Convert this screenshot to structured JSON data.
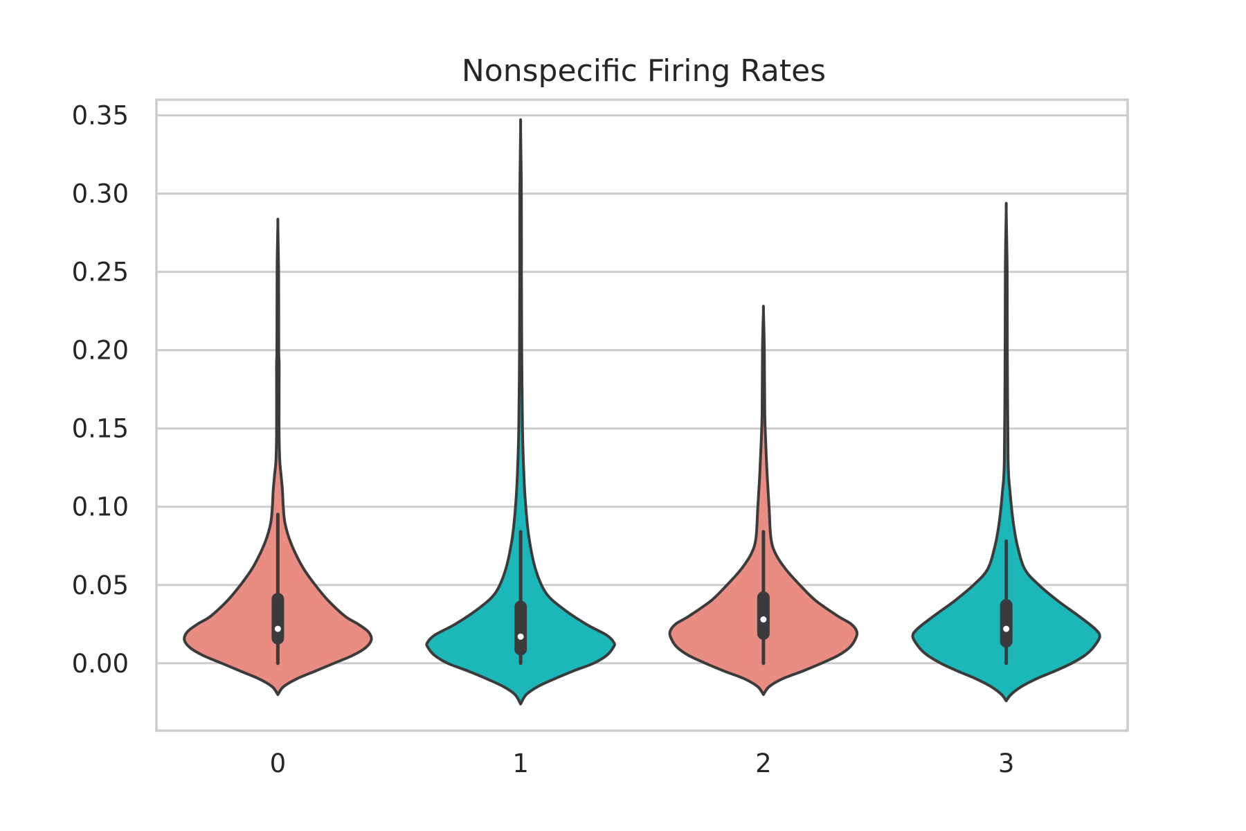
{
  "chart_data": {
    "type": "violin",
    "title": "Nonspecific Firing Rates",
    "xlabel": "",
    "ylabel": "",
    "categories": [
      "0",
      "1",
      "2",
      "3"
    ],
    "ylim": [
      -0.043,
      0.36
    ],
    "yticks": [
      "0.00",
      "0.05",
      "0.10",
      "0.15",
      "0.20",
      "0.25",
      "0.30",
      "0.35"
    ],
    "ytick_values": [
      0.0,
      0.05,
      0.1,
      0.15,
      0.2,
      0.25,
      0.3,
      0.35
    ],
    "grid": "horizontal",
    "palette": [
      "#e98d82",
      "#1bb7b9"
    ],
    "edge_color": "#3b3b3b",
    "grid_color": "#cccccc",
    "violins": [
      {
        "category": "0",
        "color": "#e98d82",
        "range": [
          -0.02,
          0.28
        ],
        "median": 0.022,
        "q1": 0.012,
        "q3": 0.045,
        "whisker_low": 0.0,
        "whisker_high": 0.095,
        "density_profile": [
          [
            -0.02,
            0.0
          ],
          [
            -0.015,
            0.06
          ],
          [
            -0.01,
            0.2
          ],
          [
            -0.005,
            0.4
          ],
          [
            0.0,
            0.6
          ],
          [
            0.005,
            0.8
          ],
          [
            0.01,
            0.94
          ],
          [
            0.015,
            1.0
          ],
          [
            0.02,
            0.97
          ],
          [
            0.025,
            0.86
          ],
          [
            0.03,
            0.72
          ],
          [
            0.04,
            0.54
          ],
          [
            0.05,
            0.4
          ],
          [
            0.06,
            0.28
          ],
          [
            0.07,
            0.19
          ],
          [
            0.08,
            0.12
          ],
          [
            0.09,
            0.075
          ],
          [
            0.1,
            0.058
          ],
          [
            0.11,
            0.05
          ],
          [
            0.12,
            0.035
          ],
          [
            0.13,
            0.02
          ],
          [
            0.15,
            0.013
          ],
          [
            0.19,
            0.014
          ],
          [
            0.2,
            0.01
          ],
          [
            0.25,
            0.008
          ],
          [
            0.28,
            0.0
          ]
        ]
      },
      {
        "category": "1",
        "color": "#1bb7b9",
        "range": [
          -0.026,
          0.342
        ],
        "median": 0.017,
        "q1": 0.005,
        "q3": 0.04,
        "whisker_low": 0.0,
        "whisker_high": 0.084,
        "density_profile": [
          [
            -0.026,
            0.0
          ],
          [
            -0.02,
            0.06
          ],
          [
            -0.015,
            0.18
          ],
          [
            -0.01,
            0.36
          ],
          [
            -0.005,
            0.56
          ],
          [
            0.0,
            0.78
          ],
          [
            0.005,
            0.92
          ],
          [
            0.01,
            0.99
          ],
          [
            0.013,
            1.0
          ],
          [
            0.018,
            0.92
          ],
          [
            0.025,
            0.7
          ],
          [
            0.035,
            0.45
          ],
          [
            0.045,
            0.27
          ],
          [
            0.06,
            0.16
          ],
          [
            0.08,
            0.09
          ],
          [
            0.1,
            0.055
          ],
          [
            0.12,
            0.035
          ],
          [
            0.15,
            0.02
          ],
          [
            0.2,
            0.012
          ],
          [
            0.25,
            0.009
          ],
          [
            0.3,
            0.008
          ],
          [
            0.342,
            0.0
          ]
        ]
      },
      {
        "category": "2",
        "color": "#e98d82",
        "range": [
          -0.02,
          0.225
        ],
        "median": 0.028,
        "q1": 0.015,
        "q3": 0.046,
        "whisker_low": 0.0,
        "whisker_high": 0.084,
        "density_profile": [
          [
            -0.02,
            0.0
          ],
          [
            -0.015,
            0.06
          ],
          [
            -0.01,
            0.2
          ],
          [
            -0.005,
            0.42
          ],
          [
            0.0,
            0.62
          ],
          [
            0.005,
            0.8
          ],
          [
            0.01,
            0.92
          ],
          [
            0.015,
            0.98
          ],
          [
            0.02,
            1.0
          ],
          [
            0.025,
            0.94
          ],
          [
            0.03,
            0.8
          ],
          [
            0.04,
            0.56
          ],
          [
            0.05,
            0.39
          ],
          [
            0.06,
            0.24
          ],
          [
            0.07,
            0.13
          ],
          [
            0.08,
            0.08
          ],
          [
            0.1,
            0.06
          ],
          [
            0.12,
            0.04
          ],
          [
            0.14,
            0.025
          ],
          [
            0.16,
            0.014
          ],
          [
            0.2,
            0.01
          ],
          [
            0.225,
            0.0
          ]
        ]
      },
      {
        "category": "3",
        "color": "#1bb7b9",
        "range": [
          -0.024,
          0.289
        ],
        "median": 0.022,
        "q1": 0.01,
        "q3": 0.041,
        "whisker_low": 0.0,
        "whisker_high": 0.078,
        "density_profile": [
          [
            -0.024,
            0.0
          ],
          [
            -0.02,
            0.05
          ],
          [
            -0.015,
            0.16
          ],
          [
            -0.01,
            0.32
          ],
          [
            -0.005,
            0.52
          ],
          [
            0.0,
            0.7
          ],
          [
            0.005,
            0.84
          ],
          [
            0.01,
            0.93
          ],
          [
            0.017,
            1.0
          ],
          [
            0.022,
            0.95
          ],
          [
            0.03,
            0.78
          ],
          [
            0.04,
            0.55
          ],
          [
            0.05,
            0.35
          ],
          [
            0.06,
            0.2
          ],
          [
            0.075,
            0.12
          ],
          [
            0.09,
            0.075
          ],
          [
            0.11,
            0.04
          ],
          [
            0.13,
            0.02
          ],
          [
            0.2,
            0.012
          ],
          [
            0.25,
            0.01
          ],
          [
            0.289,
            0.0
          ]
        ]
      }
    ]
  }
}
